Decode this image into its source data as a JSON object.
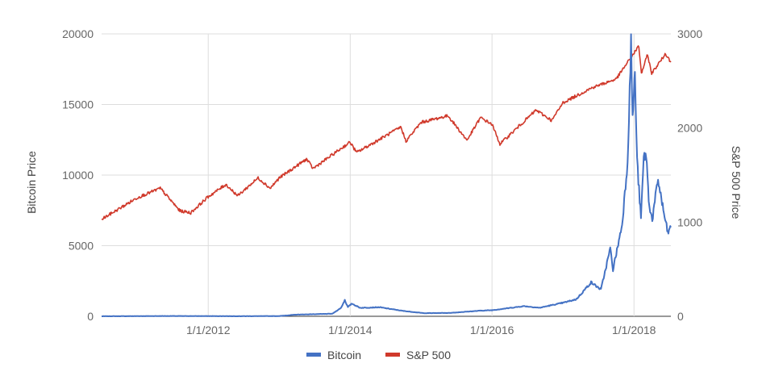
{
  "chart_data": {
    "type": "line",
    "title": "",
    "xlabel": "",
    "y_left_label": "Bitcoin Price",
    "y_right_label": "S&P 500 Price",
    "x_range": [
      "2010-07-01",
      "2018-07-10"
    ],
    "y_left_range": [
      0,
      20000
    ],
    "y_right_range": [
      0,
      3000
    ],
    "y_left_ticks": [
      "0",
      "5000",
      "10000",
      "15000",
      "20000"
    ],
    "y_right_ticks": [
      "0",
      "1000",
      "2000",
      "3000"
    ],
    "x_ticks": [
      {
        "date": "2012-01-01",
        "label": "1/1/2012"
      },
      {
        "date": "2014-01-01",
        "label": "1/1/2014"
      },
      {
        "date": "2016-01-01",
        "label": "1/1/2016"
      },
      {
        "date": "2018-01-01",
        "label": "1/1/2018"
      }
    ],
    "grid": true,
    "legend_position": "bottom",
    "series": [
      {
        "name": "Bitcoin",
        "axis": "left",
        "color": "#4472c4",
        "points": [
          [
            "2010-07-01",
            0
          ],
          [
            "2011-06-01",
            20
          ],
          [
            "2012-06-01",
            8
          ],
          [
            "2013-01-01",
            15
          ],
          [
            "2013-04-01",
            120
          ],
          [
            "2013-10-01",
            180
          ],
          [
            "2013-11-15",
            600
          ],
          [
            "2013-12-04",
            1150
          ],
          [
            "2013-12-20",
            650
          ],
          [
            "2014-01-10",
            900
          ],
          [
            "2014-02-20",
            600
          ],
          [
            "2014-06-01",
            640
          ],
          [
            "2014-10-01",
            380
          ],
          [
            "2015-01-15",
            220
          ],
          [
            "2015-06-01",
            240
          ],
          [
            "2015-11-04",
            400
          ],
          [
            "2016-01-01",
            430
          ],
          [
            "2016-06-15",
            720
          ],
          [
            "2016-09-01",
            600
          ],
          [
            "2017-01-01",
            960
          ],
          [
            "2017-03-10",
            1200
          ],
          [
            "2017-05-25",
            2400
          ],
          [
            "2017-07-15",
            1900
          ],
          [
            "2017-09-01",
            4800
          ],
          [
            "2017-09-15",
            3300
          ],
          [
            "2017-11-01",
            6500
          ],
          [
            "2017-11-29",
            11000
          ],
          [
            "2017-12-17",
            19300
          ],
          [
            "2017-12-25",
            14000
          ],
          [
            "2018-01-06",
            17200
          ],
          [
            "2018-01-17",
            11000
          ],
          [
            "2018-02-06",
            6900
          ],
          [
            "2018-02-20",
            11200
          ],
          [
            "2018-03-05",
            11500
          ],
          [
            "2018-03-18",
            8200
          ],
          [
            "2018-04-05",
            6800
          ],
          [
            "2018-05-05",
            9700
          ],
          [
            "2018-06-01",
            7500
          ],
          [
            "2018-06-24",
            5900
          ],
          [
            "2018-07-10",
            6300
          ]
        ]
      },
      {
        "name": "S&P 500",
        "axis": "right",
        "color": "#d0392b",
        "points": [
          [
            "2010-07-01",
            1030
          ],
          [
            "2010-09-15",
            1125
          ],
          [
            "2011-01-01",
            1260
          ],
          [
            "2011-04-29",
            1360
          ],
          [
            "2011-08-08",
            1120
          ],
          [
            "2011-10-03",
            1100
          ],
          [
            "2012-01-01",
            1270
          ],
          [
            "2012-04-01",
            1400
          ],
          [
            "2012-06-01",
            1280
          ],
          [
            "2012-09-14",
            1470
          ],
          [
            "2012-11-15",
            1360
          ],
          [
            "2013-01-01",
            1470
          ],
          [
            "2013-05-21",
            1670
          ],
          [
            "2013-06-24",
            1570
          ],
          [
            "2013-12-31",
            1850
          ],
          [
            "2014-02-03",
            1740
          ],
          [
            "2014-09-19",
            2010
          ],
          [
            "2014-10-15",
            1860
          ],
          [
            "2015-01-01",
            2060
          ],
          [
            "2015-05-20",
            2130
          ],
          [
            "2015-08-25",
            1870
          ],
          [
            "2015-11-03",
            2110
          ],
          [
            "2016-01-01",
            2040
          ],
          [
            "2016-02-11",
            1830
          ],
          [
            "2016-08-15",
            2190
          ],
          [
            "2016-11-04",
            2080
          ],
          [
            "2017-01-01",
            2270
          ],
          [
            "2017-06-01",
            2430
          ],
          [
            "2017-10-01",
            2520
          ],
          [
            "2018-01-26",
            2870
          ],
          [
            "2018-02-08",
            2580
          ],
          [
            "2018-03-12",
            2780
          ],
          [
            "2018-04-02",
            2580
          ],
          [
            "2018-06-13",
            2790
          ],
          [
            "2018-07-10",
            2700
          ]
        ]
      }
    ]
  }
}
